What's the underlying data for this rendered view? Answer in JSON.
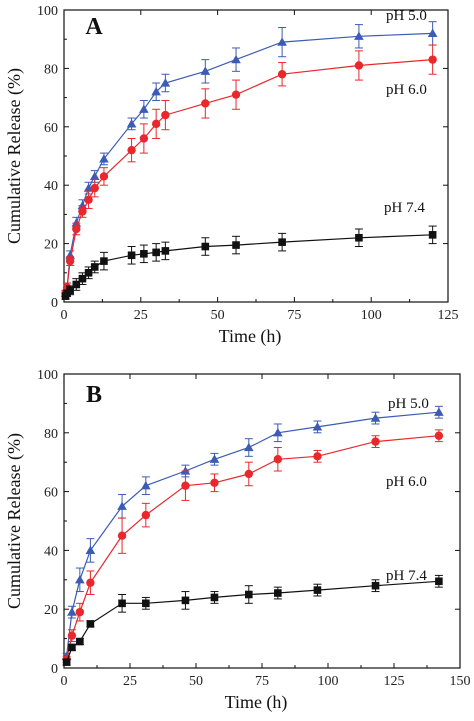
{
  "chart_data": [
    {
      "type": "line",
      "panel_label": "A",
      "xlabel": "Time (h)",
      "ylabel": "Cumulative Release (%)",
      "xlim": [
        0,
        125
      ],
      "ylim": [
        0,
        100
      ],
      "xticks": [
        "0",
        "25",
        "50",
        "75",
        "100",
        "125"
      ],
      "yticks": [
        "0",
        "20",
        "40",
        "60",
        "80",
        "100"
      ],
      "error_bars": true,
      "series": [
        {
          "name": "pH 5.0",
          "color": "#3b5bb5",
          "marker": "triangle",
          "x": [
            0.5,
            1,
            2,
            4,
            6,
            8,
            10,
            13,
            22,
            26,
            30,
            33,
            46,
            56,
            71,
            96,
            120
          ],
          "y": [
            3,
            5,
            16,
            27,
            33,
            39,
            43,
            49,
            61,
            66,
            72,
            75,
            79,
            83,
            89,
            91,
            92
          ],
          "err": [
            1,
            1.5,
            1.5,
            2,
            2,
            2,
            2,
            2,
            2,
            3,
            3,
            3,
            4,
            4,
            5,
            4,
            4
          ]
        },
        {
          "name": "pH 6.0",
          "color": "#e8282c",
          "marker": "circle",
          "x": [
            0.5,
            1,
            2,
            4,
            6,
            8,
            10,
            13,
            22,
            26,
            30,
            33,
            46,
            56,
            71,
            96,
            120
          ],
          "y": [
            3,
            5,
            14,
            25,
            31,
            35,
            39,
            43,
            52,
            56,
            61,
            64,
            68,
            71,
            78,
            81,
            83
          ],
          "err": [
            1,
            1.5,
            1.5,
            2,
            2,
            3,
            3,
            3,
            4,
            5,
            5,
            5,
            5,
            5,
            4,
            5,
            5
          ]
        },
        {
          "name": "pH 7.4",
          "color": "#111111",
          "marker": "square",
          "x": [
            0.5,
            1,
            2,
            4,
            6,
            8,
            10,
            13,
            22,
            26,
            30,
            33,
            46,
            56,
            71,
            96,
            120
          ],
          "y": [
            2,
            3,
            4,
            6,
            8,
            10,
            12,
            14,
            16,
            16.5,
            17,
            17.5,
            19,
            19.5,
            20.5,
            22,
            23
          ],
          "err": [
            1,
            1,
            1.5,
            2,
            2,
            2,
            2,
            3,
            3,
            3,
            3,
            3,
            3,
            3,
            3,
            3,
            3
          ]
        }
      ]
    },
    {
      "type": "line",
      "panel_label": "B",
      "xlabel": "Time (h)",
      "ylabel": "Cumulative Release (%)",
      "xlim": [
        0,
        150
      ],
      "ylim": [
        0,
        100
      ],
      "xticks": [
        "0",
        "25",
        "50",
        "75",
        "100",
        "125",
        "150"
      ],
      "yticks": [
        "0",
        "20",
        "40",
        "60",
        "80",
        "100"
      ],
      "error_bars": true,
      "series": [
        {
          "name": "pH 5.0",
          "color": "#3b5bb5",
          "marker": "triangle",
          "x": [
            1,
            3,
            6,
            10,
            22,
            31,
            46,
            57,
            70,
            81,
            96,
            118,
            142
          ],
          "y": [
            4,
            19,
            30,
            40,
            55,
            62,
            67,
            71,
            75,
            80,
            82,
            85,
            87
          ],
          "err": [
            1,
            2,
            4,
            4,
            4,
            3,
            2,
            2,
            3,
            3,
            2,
            2,
            2
          ]
        },
        {
          "name": "pH 6.0",
          "color": "#e8282c",
          "marker": "circle",
          "x": [
            1,
            3,
            6,
            10,
            22,
            31,
            46,
            57,
            70,
            81,
            96,
            118,
            142
          ],
          "y": [
            3,
            11,
            19,
            29,
            45,
            52,
            62,
            63,
            66,
            71,
            72,
            77,
            79
          ],
          "err": [
            1,
            2,
            3,
            4,
            6,
            4,
            5,
            3,
            4,
            4,
            2,
            2,
            2
          ]
        },
        {
          "name": "pH 7.4",
          "color": "#111111",
          "marker": "square",
          "x": [
            1,
            3,
            6,
            10,
            22,
            31,
            46,
            57,
            70,
            81,
            96,
            118,
            142
          ],
          "y": [
            2,
            7,
            9,
            15,
            22,
            22,
            23,
            24,
            25,
            25.5,
            26.5,
            28,
            29.5
          ],
          "err": [
            1,
            1,
            1,
            1,
            3,
            2,
            3,
            2,
            3,
            2,
            2,
            2,
            2
          ]
        }
      ]
    }
  ]
}
